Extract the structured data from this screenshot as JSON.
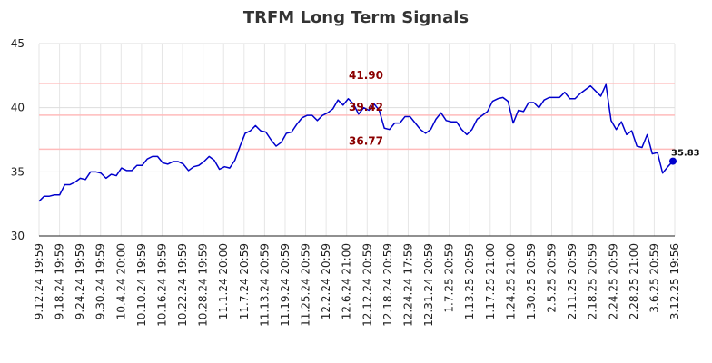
{
  "chart_data": {
    "type": "line",
    "title": "TRFM Long Term Signals",
    "xlabel": "",
    "ylabel": "",
    "ylim": [
      30,
      45
    ],
    "yticks": [
      30,
      35,
      40,
      45
    ],
    "grid": true,
    "x_tick_labels": [
      "9.12.24 19:59",
      "9.18.24 19:59",
      "9.24.24 19:59",
      "9.30.24 19:59",
      "10.4.24 20:00",
      "10.10.24 19:59",
      "10.16.24 19:59",
      "10.22.24 19:59",
      "10.28.24 19:59",
      "11.1.24 20:00",
      "11.7.24 20:59",
      "11.13.24 20:59",
      "11.19.24 20:59",
      "11.25.24 20:59",
      "12.2.24 20:59",
      "12.6.24 21:00",
      "12.12.24 20:59",
      "12.18.24 20:59",
      "12.24.24 17:59",
      "12.31.24 20:59",
      "1.7.25 20:59",
      "1.13.25 20:59",
      "1.17.25 21:00",
      "1.24.25 21:00",
      "1.30.25 20:59",
      "2.5.25 20:59",
      "2.11.25 20:59",
      "2.18.25 20:59",
      "2.24.25 20:59",
      "2.28.25 21:00",
      "3.6.25 20:59",
      "3.12.25 19:56"
    ],
    "signals": [
      {
        "label": "41.90",
        "value": 41.9
      },
      {
        "label": "39.42",
        "value": 39.42
      },
      {
        "label": "36.77",
        "value": 36.77
      }
    ],
    "series": [
      {
        "color": "#0000cc",
        "values": [
          32.7,
          33.1,
          33.1,
          33.2,
          33.2,
          34.0,
          34.0,
          34.2,
          34.5,
          34.4,
          35.0,
          35.0,
          34.9,
          34.5,
          34.8,
          34.7,
          35.3,
          35.1,
          35.1,
          35.5,
          35.5,
          36.0,
          36.2,
          36.2,
          35.7,
          35.6,
          35.8,
          35.8,
          35.6,
          35.1,
          35.4,
          35.5,
          35.8,
          36.2,
          35.9,
          35.2,
          35.4,
          35.3,
          35.9,
          37.0,
          38.0,
          38.2,
          38.6,
          38.2,
          38.1,
          37.5,
          37.0,
          37.3,
          38.0,
          38.1,
          38.7,
          39.2,
          39.4,
          39.4,
          39.0,
          39.4,
          39.6,
          39.9,
          40.6,
          40.2,
          40.7,
          40.3,
          39.5,
          40.0,
          39.8,
          40.3,
          39.8,
          38.4,
          38.3,
          38.8,
          38.8,
          39.3,
          39.3,
          38.8,
          38.3,
          38.0,
          38.3,
          39.1,
          39.6,
          39.0,
          38.9,
          38.9,
          38.3,
          37.9,
          38.3,
          39.1,
          39.4,
          39.7,
          40.5,
          40.7,
          40.8,
          40.5,
          38.8,
          39.8,
          39.7,
          40.4,
          40.4,
          40.0,
          40.6,
          40.8,
          40.8,
          40.8,
          41.2,
          40.7,
          40.7,
          41.1,
          41.4,
          41.7,
          41.3,
          40.9,
          41.8,
          39.0,
          38.3,
          38.9,
          37.9,
          38.2,
          37.0,
          36.9,
          37.9,
          36.4,
          36.5,
          34.9,
          35.4,
          35.83
        ]
      }
    ],
    "last_point": {
      "label": "35.83",
      "value": 35.83
    }
  }
}
